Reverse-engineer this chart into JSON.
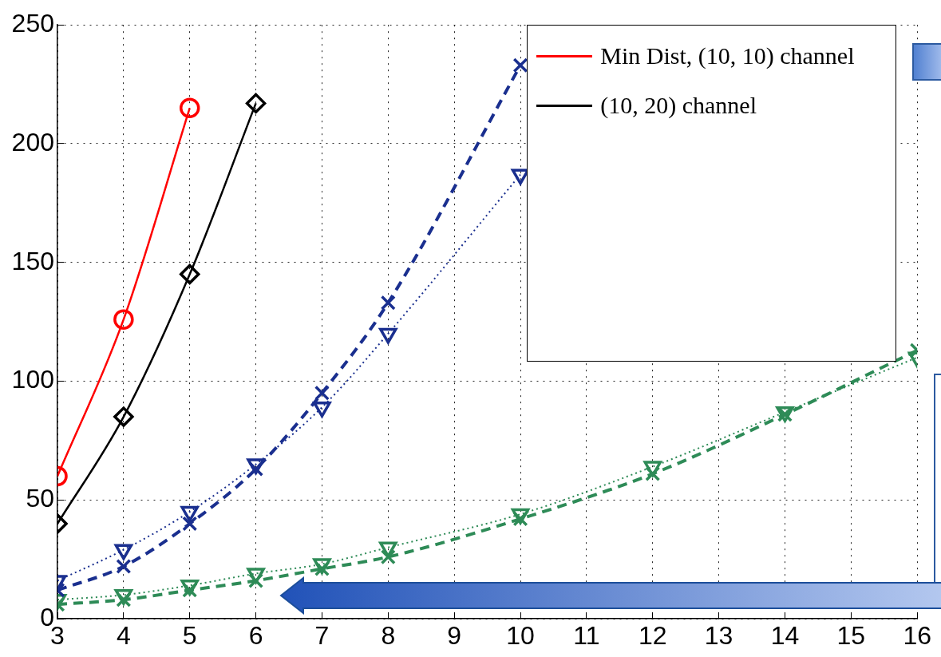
{
  "chart_data": {
    "type": "line",
    "xlim": [
      3,
      16
    ],
    "xticks": [
      3,
      4,
      5,
      6,
      7,
      8,
      9,
      10,
      11,
      12,
      13,
      14,
      15,
      16
    ],
    "ylim": [
      0,
      250
    ],
    "yticks": [
      0,
      50,
      100,
      150,
      200,
      250
    ],
    "grid": true,
    "legend": "top right",
    "series": [
      {
        "name": "Min Dist, (10, 10) channel",
        "color": "#ff0000",
        "marker": "circle",
        "line_style": "solid",
        "x": [
          3,
          4,
          5
        ],
        "values": [
          60,
          126,
          215
        ]
      },
      {
        "name": "(10, 20) channel",
        "color": "#000000",
        "marker": "diamond",
        "line_style": "solid",
        "x": [
          3,
          4,
          5,
          6
        ],
        "values": [
          40,
          85,
          145,
          217
        ]
      },
      {
        "color": "#1a2f8f",
        "marker": "cross",
        "line_style": "dashed",
        "x": [
          3,
          4,
          5,
          6,
          7,
          8,
          10
        ],
        "values": [
          12,
          22,
          40,
          63,
          95,
          133,
          233
        ]
      },
      {
        "color": "#1a2f8f",
        "marker": "triangle",
        "line_style": "dotted",
        "x": [
          3,
          4,
          5,
          6,
          7,
          8,
          10
        ],
        "values": [
          16,
          29,
          45,
          65,
          89,
          120,
          187
        ]
      },
      {
        "color": "#2e8b57",
        "marker": "cross",
        "line_style": "dashed",
        "x": [
          3,
          4,
          5,
          6,
          7,
          8,
          10,
          12,
          14,
          16
        ],
        "values": [
          6,
          8,
          12,
          16,
          21,
          26,
          42,
          61,
          86,
          113
        ]
      },
      {
        "color": "#2e8b57",
        "marker": "triangle",
        "line_style": "dotted",
        "x": [
          3,
          4,
          5,
          6,
          7,
          8,
          10,
          12,
          14,
          16
        ],
        "values": [
          8,
          10,
          14,
          19,
          23,
          30,
          44,
          64,
          87,
          110
        ]
      }
    ]
  }
}
